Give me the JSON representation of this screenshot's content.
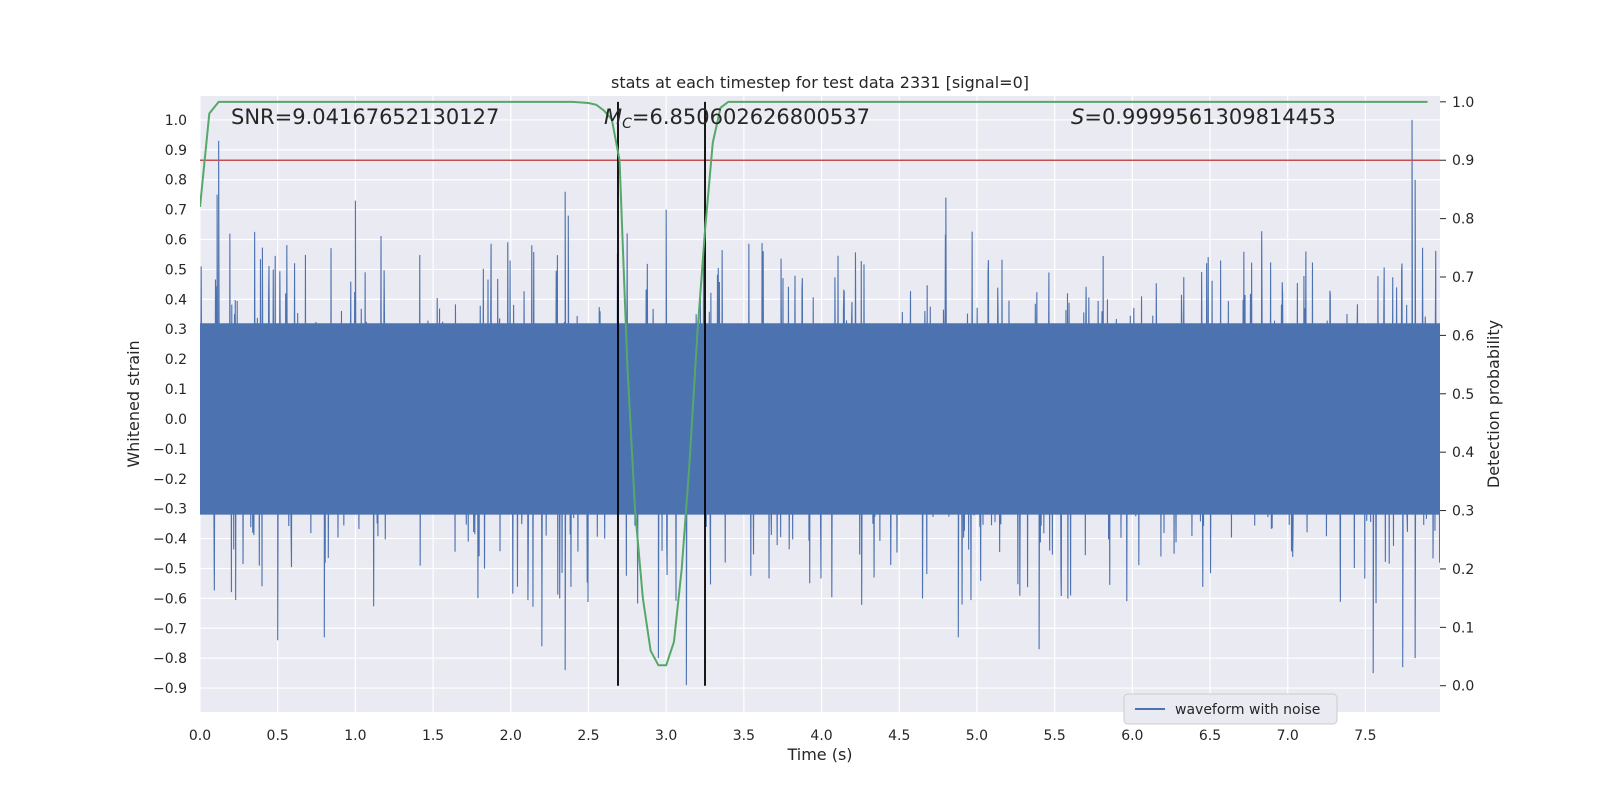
{
  "chart_data": {
    "type": "line",
    "title": "stats at each timestep for test data 2331 [signal=0]",
    "xlabel": "Time (s)",
    "ylabel": "Whitened strain",
    "y2label": "Detection probability",
    "xlim": [
      0.0,
      7.98
    ],
    "ylim": [
      -0.98,
      1.08
    ],
    "y2lim": [
      -0.045,
      1.01
    ],
    "x_ticks": [
      0.0,
      0.5,
      1.0,
      1.5,
      2.0,
      2.5,
      3.0,
      3.5,
      4.0,
      4.5,
      5.0,
      5.5,
      6.0,
      6.5,
      7.0,
      7.5
    ],
    "y_ticks": [
      1.0,
      0.9,
      0.8,
      0.7,
      0.6,
      0.5,
      0.4,
      0.3,
      0.2,
      0.1,
      0.0,
      -0.1,
      -0.2,
      -0.3,
      -0.4,
      -0.5,
      -0.6,
      -0.7,
      -0.8,
      -0.9
    ],
    "y2_ticks": [
      1.0,
      0.9,
      0.8,
      0.7,
      0.6,
      0.5,
      0.4,
      0.3,
      0.2,
      0.1,
      0.0
    ],
    "grid": true,
    "legend": {
      "position": "lower-right",
      "entries": [
        "waveform with noise"
      ]
    },
    "annotations": {
      "snr": "SNR=9.04167652130127",
      "mc_symbol": "M",
      "mc_sub": "C",
      "mc_value": "=6.850602626800537",
      "s_symbol": "S",
      "s_value": "=0.9999561309814453"
    },
    "series": [
      {
        "name": "waveform with noise",
        "axis": "left",
        "style": "dense-noise",
        "duration": 7.98,
        "core_amplitude": 0.32,
        "peak_values": [
          {
            "x": 0.12,
            "y": 0.93
          },
          {
            "x": 0.11,
            "y": 0.75
          },
          {
            "x": 1.0,
            "y": 0.73
          },
          {
            "x": 2.35,
            "y": 0.76
          },
          {
            "x": 2.37,
            "y": 0.68
          },
          {
            "x": 3.0,
            "y": 0.7
          },
          {
            "x": 4.8,
            "y": 0.74
          },
          {
            "x": 7.8,
            "y": 1.0
          },
          {
            "x": 7.82,
            "y": 0.8
          },
          {
            "x": 0.5,
            "y": -0.74
          },
          {
            "x": 0.8,
            "y": -0.73
          },
          {
            "x": 2.35,
            "y": -0.84
          },
          {
            "x": 2.2,
            "y": -0.76
          },
          {
            "x": 3.13,
            "y": -0.89
          },
          {
            "x": 2.95,
            "y": -0.8
          },
          {
            "x": 4.88,
            "y": -0.73
          },
          {
            "x": 5.4,
            "y": -0.77
          },
          {
            "x": 7.55,
            "y": -0.85
          },
          {
            "x": 7.74,
            "y": -0.83
          },
          {
            "x": 7.82,
            "y": -0.8
          }
        ]
      },
      {
        "name": "detection probability",
        "axis": "right",
        "style": "line",
        "color": "#55a868",
        "x": [
          0.0,
          0.06,
          0.12,
          0.5,
          1.0,
          2.0,
          2.4,
          2.5,
          2.55,
          2.6,
          2.65,
          2.7,
          2.75,
          2.8,
          2.85,
          2.9,
          2.95,
          3.0,
          3.05,
          3.1,
          3.15,
          3.2,
          3.25,
          3.3,
          3.35,
          3.4,
          3.5,
          4.0,
          7.9
        ],
        "y": [
          0.82,
          0.98,
          1.0,
          1.0,
          1.0,
          1.0,
          1.0,
          0.998,
          0.995,
          0.985,
          0.97,
          0.9,
          0.55,
          0.3,
          0.15,
          0.06,
          0.035,
          0.035,
          0.075,
          0.2,
          0.38,
          0.6,
          0.78,
          0.93,
          0.99,
          1.0,
          1.0,
          1.0,
          1.0
        ]
      },
      {
        "name": "threshold",
        "axis": "right",
        "style": "hline",
        "color": "#c44e52",
        "y": 0.9
      }
    ],
    "vlines": [
      2.69,
      3.25
    ]
  },
  "colors": {
    "waveform": "#4c72b0",
    "probability": "#55a868",
    "threshold": "#c44e52",
    "vline": "#000000",
    "plot_background": "#eaeaf2",
    "grid": "#ffffff"
  }
}
